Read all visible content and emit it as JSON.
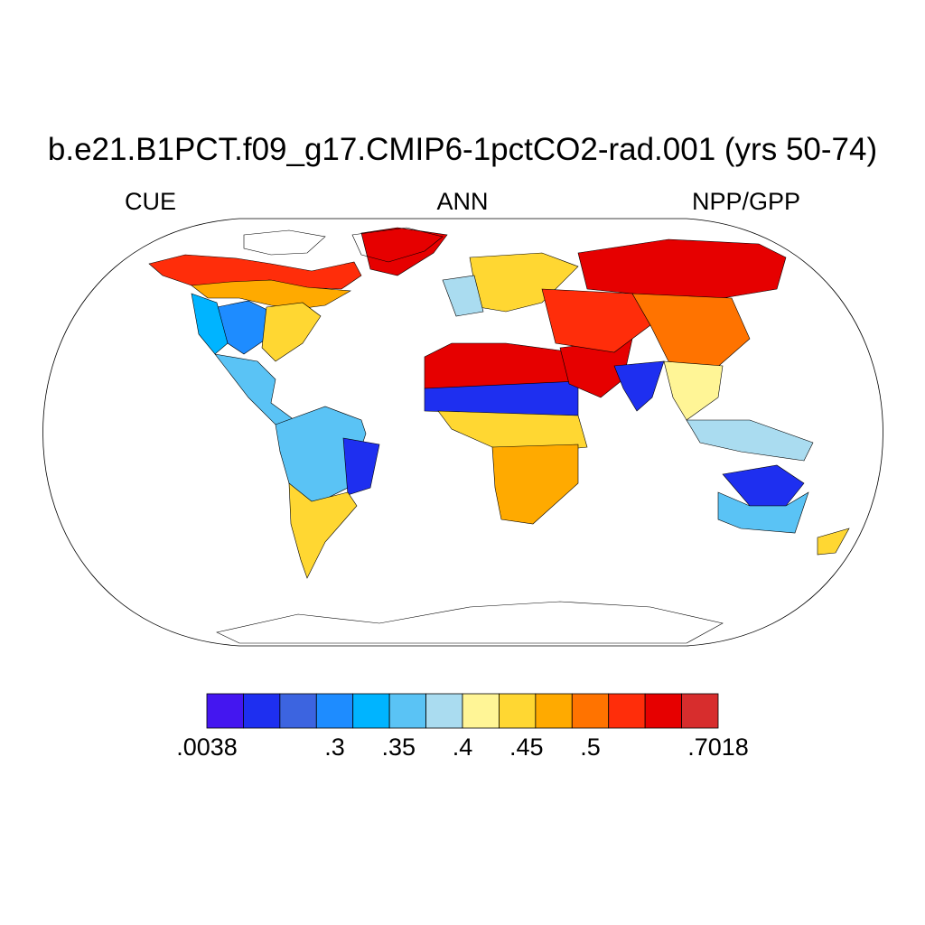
{
  "title": "b.e21.B1PCT.f09_g17.CMIP6-1pctCO2-rad.001 (yrs 50-74)",
  "subtitle_left": "CUE",
  "subtitle_center": "ANN",
  "subtitle_right": "NPP/GPP",
  "map": {
    "projection": "Robinson",
    "field": "CUE",
    "background": "#ffffff",
    "coastline_color": "#000000",
    "regions": [
      {
        "name": "Alaska / N Canada",
        "level": 11
      },
      {
        "name": "Canada boreal",
        "level": 9
      },
      {
        "name": "US Great Plains",
        "level": 3
      },
      {
        "name": "US West",
        "level": 4
      },
      {
        "name": "Eastern US",
        "level": 8
      },
      {
        "name": "Mexico / Central America",
        "level": 5
      },
      {
        "name": "Amazon",
        "level": 5
      },
      {
        "name": "NE Brazil",
        "level": 1
      },
      {
        "name": "Southern South America",
        "level": 8
      },
      {
        "name": "Greenland coast",
        "level": 12
      },
      {
        "name": "Europe",
        "level": 8
      },
      {
        "name": "Western Europe",
        "level": 6
      },
      {
        "name": "Sahara",
        "level": 12
      },
      {
        "name": "Sahel belt",
        "level": 1
      },
      {
        "name": "Central Africa",
        "level": 8
      },
      {
        "name": "Southern Africa",
        "level": 9
      },
      {
        "name": "Middle East",
        "level": 12
      },
      {
        "name": "India",
        "level": 1
      },
      {
        "name": "Siberia",
        "level": 12
      },
      {
        "name": "Central Asia",
        "level": 11
      },
      {
        "name": "China",
        "level": 10
      },
      {
        "name": "SE Asia",
        "level": 7
      },
      {
        "name": "Indonesia",
        "level": 6
      },
      {
        "name": "Northern Australia",
        "level": 1
      },
      {
        "name": "Central Australia",
        "level": 5
      },
      {
        "name": "New Zealand",
        "level": 8
      }
    ]
  },
  "colorbar": {
    "colors": [
      "#4416f0",
      "#1e2ff0",
      "#3c64e0",
      "#1e8cff",
      "#00b4ff",
      "#5ac3f5",
      "#aadcf0",
      "#fff596",
      "#ffd732",
      "#ffaa00",
      "#ff7300",
      "#ff2d0a",
      "#e60000",
      "#d72d2d"
    ],
    "labels": [
      ".0038",
      ".3",
      ".35",
      ".4",
      ".45",
      ".5",
      ".7018"
    ],
    "label_positions": [
      0,
      2,
      3,
      4,
      5,
      6,
      8
    ],
    "label_segments": 8
  }
}
